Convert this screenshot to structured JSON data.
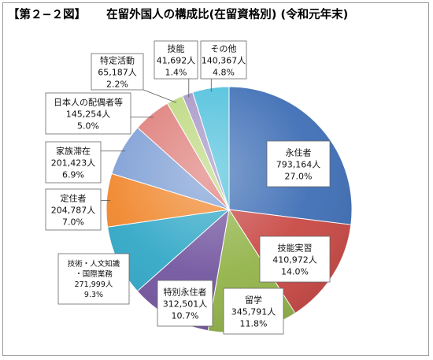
{
  "header": {
    "fig_number": "【第２−２図】",
    "title": "在留外国人の構成比(在留資格別) (令和元年末)"
  },
  "chart_data": {
    "type": "pie",
    "title": "在留外国人の構成比(在留資格別) (令和元年末)",
    "slices": [
      {
        "name": "永住者",
        "count": "793,164人",
        "pct": "27.0%",
        "value": 27.0,
        "color": "#3f6fb6"
      },
      {
        "name": "技能実習",
        "count": "410,972人",
        "pct": "14.0%",
        "value": 14.0,
        "color": "#c94945"
      },
      {
        "name": "留学",
        "count": "345,791人",
        "pct": "11.8%",
        "value": 11.8,
        "color": "#93b44a"
      },
      {
        "name": "特別永住者",
        "count": "312,501人",
        "pct": "10.7%",
        "value": 10.7,
        "color": "#7457a0"
      },
      {
        "name": "技術・人文知識・国際業務",
        "count": "271,999人",
        "pct": "9.3%",
        "value": 9.3,
        "color": "#32a8c7"
      },
      {
        "name": "定住者",
        "count": "204,787人",
        "pct": "7.0%",
        "value": 7.0,
        "color": "#f0872d"
      },
      {
        "name": "家族滞在",
        "count": "201,423人",
        "pct": "6.9%",
        "value": 6.9,
        "color": "#7e9fd5"
      },
      {
        "name": "日本人の配偶者等",
        "count": "145,254人",
        "pct": "5.0%",
        "value": 5.0,
        "color": "#de7d79"
      },
      {
        "name": "特定活動",
        "count": "65,187人",
        "pct": "2.2%",
        "value": 2.2,
        "color": "#bcd87e"
      },
      {
        "name": "技能",
        "count": "41,692人",
        "pct": "1.4%",
        "value": 1.4,
        "color": "#a594c6"
      },
      {
        "name": "その他",
        "count": "140,367人",
        "pct": "4.8%",
        "value": 4.8,
        "color": "#4fc0dc"
      }
    ]
  }
}
